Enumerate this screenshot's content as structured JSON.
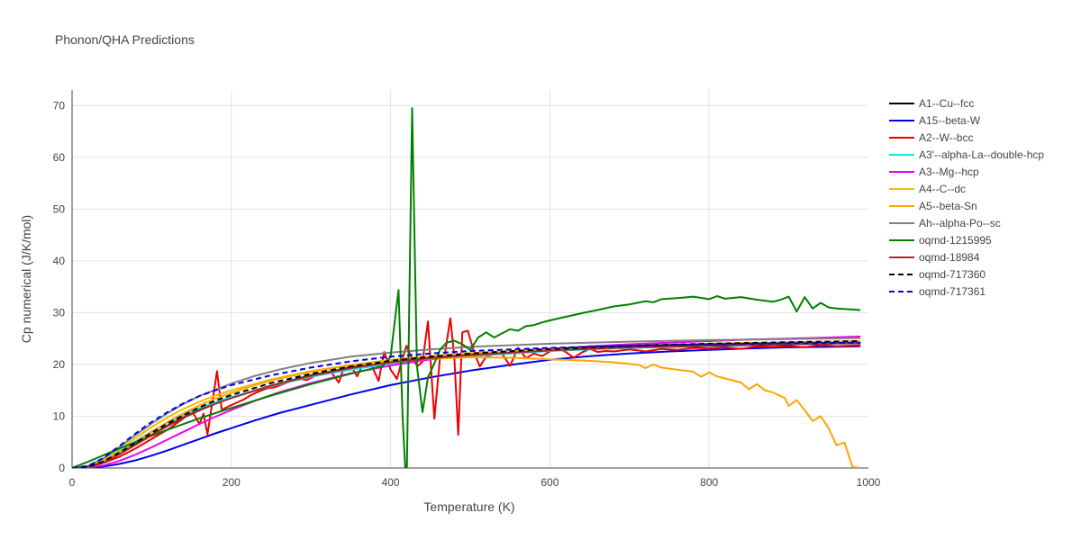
{
  "chart_data": {
    "type": "line",
    "title": "Phonon/QHA Predictions",
    "xlabel": "Temperature (K)",
    "ylabel": "Cp numerical (J/K/mol)",
    "xlim": [
      0,
      1000
    ],
    "ylim": [
      0,
      73
    ],
    "xticks": [
      0,
      200,
      400,
      600,
      800,
      1000
    ],
    "yticks": [
      0,
      10,
      20,
      30,
      40,
      50,
      60,
      70
    ],
    "grid": true,
    "legend_position": "right",
    "series": [
      {
        "name": "A1--Cu--fcc",
        "color": "#000000",
        "dash": false,
        "x": [
          0,
          20,
          40,
          60,
          80,
          100,
          120,
          140,
          160,
          180,
          200,
          250,
          300,
          350,
          400,
          450,
          500,
          600,
          700,
          800,
          900,
          990
        ],
        "y": [
          0,
          0.2,
          1.2,
          2.8,
          4.6,
          6.4,
          8.2,
          9.8,
          11.2,
          12.5,
          13.6,
          15.9,
          17.9,
          19.4,
          20.5,
          21.3,
          21.9,
          22.7,
          23.2,
          23.6,
          23.9,
          24.1
        ]
      },
      {
        "name": "A15--beta-W",
        "color": "#0000ee",
        "dash": false,
        "x": [
          0,
          20,
          40,
          60,
          80,
          100,
          120,
          140,
          160,
          180,
          200,
          230,
          260,
          300,
          350,
          400,
          450,
          500,
          550,
          600,
          650,
          700,
          750,
          800,
          850,
          900,
          950,
          990
        ],
        "y": [
          0,
          0.05,
          0.3,
          0.8,
          1.5,
          2.4,
          3.4,
          4.5,
          5.6,
          6.7,
          7.7,
          9.2,
          10.6,
          12.2,
          14.2,
          16.0,
          17.5,
          18.8,
          19.9,
          20.9,
          21.6,
          22.1,
          22.5,
          22.8,
          23.1,
          23.3,
          23.4,
          23.5
        ]
      },
      {
        "name": "A2--W--bcc",
        "color": "#ee0000",
        "dash": false,
        "x": [
          0,
          20,
          40,
          60,
          80,
          100,
          120,
          140,
          150,
          160,
          165,
          170,
          175,
          182,
          188,
          195,
          205,
          215,
          225,
          235,
          245,
          255,
          265,
          275,
          285,
          295,
          305,
          315,
          325,
          335,
          342,
          350,
          358,
          365,
          375,
          385,
          392,
          400,
          408,
          415,
          420,
          427,
          434,
          440,
          447,
          455,
          462,
          468,
          475,
          480,
          485,
          490,
          497,
          505,
          512,
          520,
          530,
          540,
          550,
          560,
          570,
          580,
          590,
          600,
          610,
          620,
          630,
          640,
          650,
          660,
          670,
          680,
          690,
          700,
          720,
          740,
          760,
          780,
          800,
          820,
          840,
          860,
          880,
          900,
          920,
          940,
          960,
          990
        ],
        "y": [
          0,
          0.2,
          1,
          2.2,
          3.8,
          5.6,
          7.4,
          9.6,
          11.2,
          8.5,
          10.5,
          6.5,
          11.5,
          18.7,
          11.2,
          11.8,
          12.5,
          13.2,
          14.1,
          14.8,
          15.4,
          15.6,
          16.2,
          16.8,
          17.2,
          17.0,
          17.8,
          18.4,
          18.6,
          16.5,
          19.6,
          19.8,
          17.7,
          20.0,
          20.2,
          16.8,
          22.4,
          19.0,
          17.2,
          21.2,
          23.6,
          21.0,
          19.7,
          20.5,
          28.3,
          9.5,
          21.3,
          21.8,
          28.9,
          21.5,
          6.4,
          26.2,
          26.5,
          22.3,
          19.6,
          21.5,
          22.0,
          22.1,
          19.7,
          23.2,
          21.2,
          22.1,
          21.6,
          22.5,
          23.1,
          22.4,
          21.3,
          22.3,
          23.0,
          22.4,
          22.6,
          22.5,
          22.7,
          22.9,
          22.5,
          23.0,
          22.8,
          23.2,
          23.1,
          23.3,
          23.0,
          23.5,
          23.4,
          23.6,
          23.3,
          23.8,
          23.5,
          23.7
        ]
      },
      {
        "name": "A3'--alpha-La--double-hcp",
        "color": "#00eeee",
        "dash": false,
        "x": [
          0,
          20,
          40,
          60,
          80,
          100,
          120,
          140,
          160,
          180,
          200,
          250,
          300,
          350,
          400,
          450,
          500,
          600,
          700,
          800,
          900,
          990
        ],
        "y": [
          0,
          0.3,
          1.5,
          3.3,
          5.2,
          7.1,
          8.8,
          10.3,
          11.6,
          12.7,
          13.7,
          15.8,
          17.6,
          19.0,
          20.2,
          21.0,
          21.6,
          22.6,
          23.2,
          23.7,
          24.0,
          24.2
        ]
      },
      {
        "name": "A3--Mg--hcp",
        "color": "#ee00ee",
        "dash": false,
        "x": [
          0,
          20,
          40,
          60,
          80,
          100,
          120,
          140,
          160,
          180,
          200,
          230,
          260,
          300,
          350,
          400,
          450,
          500,
          550,
          600,
          650,
          700,
          750,
          800,
          850,
          900,
          950,
          990
        ],
        "y": [
          0,
          0.1,
          0.5,
          1.4,
          2.6,
          4.0,
          5.5,
          7.0,
          8.5,
          9.9,
          11.2,
          13.0,
          14.6,
          16.4,
          18.3,
          19.8,
          21.0,
          21.8,
          22.5,
          23.0,
          23.5,
          23.9,
          24.2,
          24.5,
          24.8,
          25.0,
          25.2,
          25.4
        ]
      },
      {
        "name": "A4--C--dc",
        "color": "#f5b800",
        "dash": false,
        "x": [
          0,
          20,
          40,
          60,
          80,
          100,
          120,
          140,
          160,
          180,
          200,
          250,
          300,
          350,
          400,
          450,
          500,
          600,
          700,
          800,
          900,
          990
        ],
        "y": [
          0,
          0.3,
          1.6,
          3.6,
          5.8,
          7.9,
          9.8,
          11.4,
          12.8,
          14.0,
          15.0,
          17.1,
          18.7,
          19.9,
          20.9,
          21.6,
          22.2,
          23.0,
          23.6,
          24.0,
          24.3,
          24.5
        ]
      },
      {
        "name": "A5--beta-Sn",
        "color": "#ffa500",
        "dash": false,
        "x": [
          0,
          20,
          40,
          60,
          80,
          100,
          120,
          140,
          160,
          180,
          200,
          230,
          260,
          300,
          350,
          400,
          450,
          500,
          550,
          600,
          650,
          680,
          700,
          712,
          720,
          730,
          740,
          760,
          780,
          790,
          800,
          810,
          820,
          840,
          850,
          860,
          870,
          880,
          895,
          900,
          910,
          920,
          930,
          940,
          950,
          960,
          970,
          980,
          990
        ],
        "y": [
          0,
          0.2,
          1.2,
          3.0,
          5.0,
          7.0,
          8.9,
          10.6,
          12.1,
          13.4,
          14.5,
          16.0,
          17.3,
          18.6,
          19.8,
          20.6,
          21.1,
          21.4,
          21.3,
          21.0,
          20.7,
          20.4,
          20.1,
          19.9,
          19.3,
          20.0,
          19.4,
          19.0,
          18.6,
          17.6,
          18.5,
          17.7,
          17.3,
          16.5,
          15.2,
          16.2,
          15.0,
          14.6,
          13.5,
          12.0,
          13.1,
          11.2,
          9.1,
          10.0,
          7.7,
          4.4,
          4.9,
          0.2,
          0
        ]
      },
      {
        "name": "Ah--alpha-Po--sc",
        "color": "#808080",
        "dash": false,
        "x": [
          0,
          20,
          40,
          60,
          80,
          100,
          120,
          140,
          160,
          180,
          200,
          230,
          260,
          300,
          350,
          400,
          450,
          500,
          600,
          700,
          800,
          900,
          990
        ],
        "y": [
          0,
          0.4,
          1.9,
          4.1,
          6.4,
          8.6,
          10.6,
          12.4,
          13.9,
          15.1,
          16.3,
          17.8,
          19.0,
          20.3,
          21.5,
          22.3,
          22.9,
          23.4,
          24.0,
          24.4,
          24.7,
          24.9,
          25.1
        ]
      },
      {
        "name": "oqmd-1215995",
        "color": "#008000",
        "dash": false,
        "x": [
          0,
          20,
          40,
          60,
          80,
          100,
          120,
          140,
          160,
          180,
          200,
          250,
          300,
          350,
          390,
          400,
          410,
          415,
          420,
          427,
          433,
          440,
          447,
          455,
          462,
          470,
          480,
          490,
          500,
          510,
          520,
          530,
          540,
          550,
          560,
          570,
          580,
          590,
          600,
          620,
          640,
          660,
          680,
          700,
          710,
          720,
          730,
          740,
          760,
          780,
          800,
          810,
          820,
          840,
          860,
          880,
          890,
          900,
          910,
          920,
          930,
          940,
          950,
          960,
          970,
          980,
          990
        ],
        "y": [
          0,
          1.2,
          2.5,
          3.8,
          5.0,
          6.2,
          7.4,
          8.5,
          9.6,
          10.6,
          11.6,
          14.0,
          16.2,
          18.2,
          19.7,
          21.5,
          34.4,
          10.0,
          -5.0,
          69.5,
          19.8,
          10.8,
          17.5,
          20.2,
          22.8,
          24.2,
          24.6,
          23.9,
          22.8,
          25.2,
          26.2,
          25.2,
          26.0,
          26.8,
          26.5,
          27.4,
          27.6,
          28.1,
          28.5,
          29.2,
          29.9,
          30.5,
          31.2,
          31.6,
          31.9,
          32.2,
          32.0,
          32.6,
          32.8,
          33.1,
          32.6,
          33.2,
          32.7,
          33.0,
          32.5,
          32.1,
          32.5,
          33.1,
          30.2,
          33.0,
          30.8,
          31.9,
          31.0,
          30.8,
          30.7,
          30.6,
          30.5
        ]
      },
      {
        "name": "oqmd-18984",
        "color": "#a52a2a",
        "dash": false,
        "x": [
          0,
          20,
          40,
          60,
          80,
          100,
          120,
          140,
          160,
          180,
          200,
          250,
          300,
          350,
          400,
          450,
          500,
          600,
          700,
          800,
          900,
          990
        ],
        "y": [
          0,
          0.2,
          1.1,
          2.7,
          4.5,
          6.3,
          8.1,
          9.7,
          11.1,
          12.4,
          13.5,
          15.9,
          17.8,
          19.3,
          20.4,
          21.2,
          21.8,
          22.7,
          23.3,
          23.7,
          24.0,
          24.2
        ]
      },
      {
        "name": "oqmd-717360",
        "color": "#000000",
        "dash": true,
        "x": [
          0,
          20,
          40,
          60,
          80,
          100,
          120,
          140,
          160,
          180,
          200,
          250,
          300,
          350,
          400,
          450,
          500,
          600,
          700,
          800,
          900,
          990
        ],
        "y": [
          0,
          0.2,
          1.3,
          3.0,
          4.9,
          6.8,
          8.6,
          10.2,
          11.7,
          13.0,
          14.1,
          16.4,
          18.2,
          19.6,
          20.7,
          21.5,
          22.1,
          23.0,
          23.6,
          24.0,
          24.3,
          24.5
        ]
      },
      {
        "name": "oqmd-717361",
        "color": "#0000ee",
        "dash": true,
        "x": [
          0,
          20,
          40,
          60,
          80,
          100,
          120,
          140,
          160,
          180,
          200,
          250,
          300,
          350,
          400,
          450,
          500,
          600,
          700,
          800,
          900,
          990
        ],
        "y": [
          0,
          0.4,
          2.0,
          4.3,
          6.7,
          8.9,
          10.8,
          12.5,
          13.9,
          15.0,
          16.0,
          17.9,
          19.4,
          20.6,
          21.5,
          22.1,
          22.6,
          23.2,
          23.6,
          23.9,
          24.1,
          24.2
        ]
      }
    ]
  }
}
